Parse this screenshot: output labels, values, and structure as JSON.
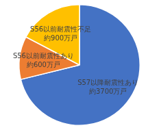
{
  "chart_data": {
    "type": "pie",
    "categories": [
      "S57以降耐震性あり",
      "S56以前耐震性あり",
      "S56以前耐震性不足"
    ],
    "values": [
      3700,
      600,
      900
    ],
    "value_labels": [
      "約3700万戸",
      "約600万戸",
      "約900万戸"
    ],
    "colors": [
      "#4472c4",
      "#ed7d31",
      "#ffc000"
    ],
    "data_labels": true
  }
}
